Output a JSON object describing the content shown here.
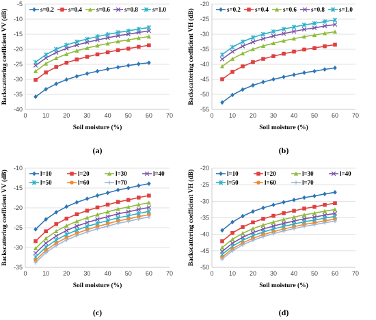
{
  "chart_data": [
    {
      "type": "line",
      "panel_label": "(a)",
      "xlabel": "Soil moisture (%)",
      "ylabel": "Backscattering coefficient VV (dB)",
      "xlim": [
        0,
        70
      ],
      "ylim": [
        -40,
        -5
      ],
      "xticks": [
        0,
        10,
        20,
        30,
        40,
        50,
        60,
        70
      ],
      "yticks": [
        -40,
        -35,
        -30,
        -25,
        -20,
        -15,
        -10,
        -5
      ],
      "grid": true,
      "legend": "top",
      "x": [
        5,
        10,
        15,
        20,
        25,
        30,
        35,
        40,
        45,
        50,
        55,
        60
      ],
      "series": [
        {
          "name": "s=0.2",
          "color": "#2e75b6",
          "marker": "diamond",
          "values": [
            -35.8,
            -33.3,
            -31.5,
            -30.1,
            -29.0,
            -28.1,
            -27.3,
            -26.6,
            -26.0,
            -25.4,
            -24.9,
            -24.5
          ]
        },
        {
          "name": "s=0.4",
          "color": "#e04040",
          "marker": "square",
          "values": [
            -30.2,
            -27.7,
            -25.9,
            -24.5,
            -23.4,
            -22.5,
            -21.7,
            -21.0,
            -20.3,
            -19.8,
            -19.2,
            -18.7
          ]
        },
        {
          "name": "s=0.6",
          "color": "#8fbc3c",
          "marker": "triangle",
          "values": [
            -27.3,
            -24.8,
            -23.0,
            -21.6,
            -20.5,
            -19.6,
            -18.8,
            -18.1,
            -17.4,
            -16.9,
            -16.3,
            -15.8
          ]
        },
        {
          "name": "s=0.8",
          "color": "#7a54a8",
          "marker": "x",
          "values": [
            -25.4,
            -22.9,
            -21.1,
            -19.7,
            -18.6,
            -17.7,
            -16.9,
            -16.2,
            -15.5,
            -15.0,
            -14.4,
            -13.9
          ]
        },
        {
          "name": "s=1.0",
          "color": "#2ab0c8",
          "marker": "asterisk",
          "values": [
            -24.3,
            -21.8,
            -20.0,
            -18.6,
            -17.5,
            -16.6,
            -15.8,
            -15.1,
            -14.4,
            -13.9,
            -13.3,
            -12.8
          ]
        }
      ]
    },
    {
      "type": "line",
      "panel_label": "(b)",
      "xlabel": "Soil moisture (%)",
      "ylabel": "Backscattering coefficient VH (dB)",
      "xlim": [
        0,
        70
      ],
      "ylim": [
        -55,
        -20
      ],
      "xticks": [
        0,
        10,
        20,
        30,
        40,
        50,
        60,
        70
      ],
      "yticks": [
        -55,
        -50,
        -45,
        -40,
        -35,
        -30,
        -25,
        -20
      ],
      "grid": true,
      "legend": "top",
      "x": [
        5,
        10,
        15,
        20,
        25,
        30,
        35,
        40,
        45,
        50,
        55,
        60
      ],
      "series": [
        {
          "name": "s=0.2",
          "color": "#2e75b6",
          "marker": "diamond",
          "values": [
            -52.7,
            -50.2,
            -48.4,
            -47.0,
            -45.9,
            -45.0,
            -44.2,
            -43.5,
            -42.8,
            -42.3,
            -41.7,
            -41.2
          ]
        },
        {
          "name": "s=0.4",
          "color": "#e04040",
          "marker": "square",
          "values": [
            -45.0,
            -42.5,
            -40.7,
            -39.3,
            -38.2,
            -37.3,
            -36.5,
            -35.8,
            -35.1,
            -34.6,
            -34.0,
            -33.5
          ]
        },
        {
          "name": "s=0.6",
          "color": "#8fbc3c",
          "marker": "triangle",
          "values": [
            -40.7,
            -38.2,
            -36.4,
            -35.0,
            -33.9,
            -33.0,
            -32.2,
            -31.5,
            -30.8,
            -30.3,
            -29.7,
            -29.2
          ]
        },
        {
          "name": "s=0.8",
          "color": "#7a54a8",
          "marker": "x",
          "values": [
            -38.3,
            -35.8,
            -34.0,
            -32.6,
            -31.5,
            -30.6,
            -29.8,
            -29.1,
            -28.4,
            -27.9,
            -27.3,
            -26.8
          ]
        },
        {
          "name": "s=1.0",
          "color": "#2ab0c8",
          "marker": "asterisk",
          "values": [
            -36.8,
            -34.3,
            -32.5,
            -31.1,
            -30.0,
            -29.1,
            -28.3,
            -27.6,
            -26.9,
            -26.4,
            -25.8,
            -25.3
          ]
        }
      ]
    },
    {
      "type": "line",
      "panel_label": "(c)",
      "xlabel": "Soil moisture (%)",
      "ylabel": "Backscattering coefficient VV (dB)",
      "xlim": [
        0,
        70
      ],
      "ylim": [
        -35,
        -10
      ],
      "xticks": [
        0,
        10,
        20,
        30,
        40,
        50,
        60,
        70
      ],
      "yticks": [
        -35,
        -30,
        -25,
        -20,
        -15,
        -10
      ],
      "grid": true,
      "legend": "top",
      "x": [
        5,
        10,
        15,
        20,
        25,
        30,
        35,
        40,
        45,
        50,
        55,
        60
      ],
      "series": [
        {
          "name": "l=10",
          "color": "#2e75b6",
          "marker": "diamond",
          "values": [
            -25.4,
            -22.9,
            -21.1,
            -19.7,
            -18.6,
            -17.7,
            -16.9,
            -16.2,
            -15.5,
            -15.0,
            -14.4,
            -13.9
          ]
        },
        {
          "name": "l=20",
          "color": "#e04040",
          "marker": "square",
          "values": [
            -28.4,
            -25.9,
            -24.1,
            -22.7,
            -21.6,
            -20.7,
            -19.9,
            -19.2,
            -18.5,
            -18.0,
            -17.4,
            -16.9
          ]
        },
        {
          "name": "l=30",
          "color": "#8fbc3c",
          "marker": "triangle",
          "values": [
            -30.2,
            -27.7,
            -25.9,
            -24.5,
            -23.4,
            -22.5,
            -21.7,
            -21.0,
            -20.3,
            -19.8,
            -19.2,
            -18.7
          ]
        },
        {
          "name": "l=40",
          "color": "#7a54a8",
          "marker": "x",
          "values": [
            -31.4,
            -28.9,
            -27.1,
            -25.7,
            -24.6,
            -23.7,
            -22.9,
            -22.2,
            -21.5,
            -21.0,
            -20.4,
            -19.9
          ]
        },
        {
          "name": "l=50",
          "color": "#2ab0c8",
          "marker": "asterisk",
          "values": [
            -32.4,
            -29.9,
            -28.1,
            -26.7,
            -25.6,
            -24.7,
            -23.9,
            -23.2,
            -22.5,
            -22.0,
            -21.4,
            -20.9
          ]
        },
        {
          "name": "l=60",
          "color": "#f08a30",
          "marker": "circle",
          "values": [
            -33.2,
            -30.7,
            -28.9,
            -27.5,
            -26.4,
            -25.5,
            -24.7,
            -24.0,
            -23.3,
            -22.8,
            -22.2,
            -21.7
          ]
        },
        {
          "name": "l=70",
          "color": "#9cb8dc",
          "marker": "plus",
          "values": [
            -33.8,
            -31.3,
            -29.5,
            -28.1,
            -27.0,
            -26.1,
            -25.3,
            -24.6,
            -23.9,
            -23.4,
            -22.8,
            -22.3
          ]
        }
      ]
    },
    {
      "type": "line",
      "panel_label": "(d)",
      "xlabel": "Soil moisture (%)",
      "ylabel": "Backscattering coefficient VH (dB)",
      "xlim": [
        0,
        70
      ],
      "ylim": [
        -50,
        -20
      ],
      "xticks": [
        0,
        10,
        20,
        30,
        40,
        50,
        60,
        70
      ],
      "yticks": [
        -50,
        -45,
        -40,
        -35,
        -30,
        -25,
        -20
      ],
      "grid": true,
      "legend": "top",
      "x": [
        5,
        10,
        15,
        20,
        25,
        30,
        35,
        40,
        45,
        50,
        55,
        60
      ],
      "series": [
        {
          "name": "l=10",
          "color": "#2e75b6",
          "marker": "diamond",
          "values": [
            -38.8,
            -36.3,
            -34.5,
            -33.1,
            -32.0,
            -31.1,
            -30.3,
            -29.6,
            -28.9,
            -28.4,
            -27.8,
            -27.3
          ]
        },
        {
          "name": "l=20",
          "color": "#e04040",
          "marker": "square",
          "values": [
            -42.1,
            -39.6,
            -37.8,
            -36.4,
            -35.3,
            -34.4,
            -33.6,
            -32.9,
            -32.2,
            -31.7,
            -31.1,
            -30.6
          ]
        },
        {
          "name": "l=30",
          "color": "#8fbc3c",
          "marker": "triangle",
          "values": [
            -44.0,
            -41.5,
            -39.7,
            -38.3,
            -37.2,
            -36.3,
            -35.5,
            -34.8,
            -34.1,
            -33.6,
            -33.0,
            -32.5
          ]
        },
        {
          "name": "l=40",
          "color": "#7a54a8",
          "marker": "x",
          "values": [
            -45.2,
            -42.7,
            -40.9,
            -39.5,
            -38.4,
            -37.5,
            -36.7,
            -36.0,
            -35.3,
            -34.8,
            -34.2,
            -33.7
          ]
        },
        {
          "name": "l=50",
          "color": "#2ab0c8",
          "marker": "asterisk",
          "values": [
            -46.1,
            -43.6,
            -41.8,
            -40.4,
            -39.3,
            -38.4,
            -37.6,
            -36.9,
            -36.2,
            -35.7,
            -35.1,
            -34.6
          ]
        },
        {
          "name": "l=60",
          "color": "#f08a30",
          "marker": "circle",
          "values": [
            -46.9,
            -44.4,
            -42.6,
            -41.2,
            -40.1,
            -39.2,
            -38.4,
            -37.7,
            -37.0,
            -36.5,
            -35.9,
            -35.4
          ]
        },
        {
          "name": "l=70",
          "color": "#9cb8dc",
          "marker": "plus",
          "values": [
            -47.5,
            -45.0,
            -43.2,
            -41.8,
            -40.7,
            -39.8,
            -39.0,
            -38.3,
            -37.6,
            -37.1,
            -36.5,
            -36.0
          ]
        }
      ]
    }
  ]
}
